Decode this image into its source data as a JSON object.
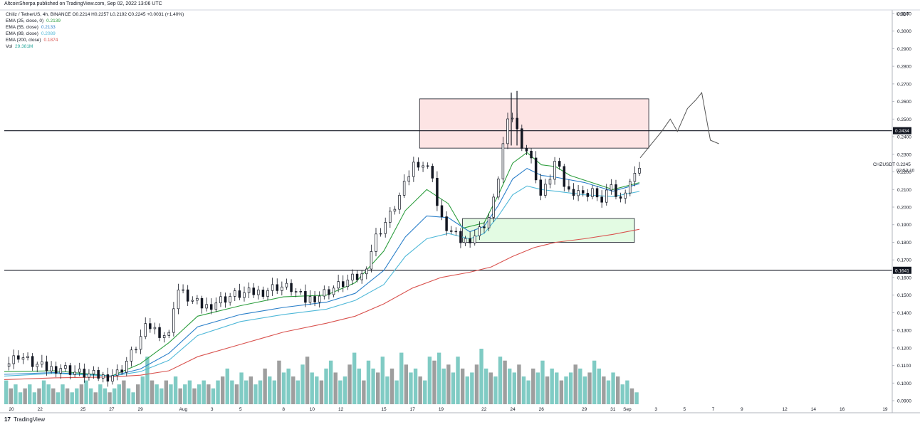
{
  "header": {
    "published": "AltcoinSherpa published on TradingView.com, Sep 02, 2022 13:06 UTC",
    "symbol_line": "Chiliz / TetherUS, 4h, BINANCE  O0.2214  H0.2257  L0.2192  C0.2245  +0.0031 (+1.40%)"
  },
  "legend": [
    {
      "label": "EMA (25, close, 0)",
      "value": "0.2139",
      "color": "#2e9e3f"
    },
    {
      "label": "EMA (55, close)",
      "value": "0.2133",
      "color": "#2a7fc9"
    },
    {
      "label": "EMA (89, close)",
      "value": "0.2089",
      "color": "#4fb8d8"
    },
    {
      "label": "EMA (200, close)",
      "value": "0.1874",
      "color": "#d9534f"
    },
    {
      "label": "Vol",
      "value": "29.381M",
      "color": "#26a69a"
    }
  ],
  "footer": {
    "logo_glyph": "17",
    "brand": "TradingView"
  },
  "chart_data": {
    "type": "candlestick",
    "currency": "USDT",
    "symbol_tag": "CHZUSDT",
    "last_price": "0.2245",
    "countdown": "02:53:10",
    "y_ticks": [
      "0.3100",
      "0.3000",
      "0.2900",
      "0.2800",
      "0.2700",
      "0.2600",
      "0.2500",
      "0.2400",
      "0.2300",
      "0.2200",
      "0.2100",
      "0.2000",
      "0.1900",
      "0.1800",
      "0.1700",
      "0.1600",
      "0.1500",
      "0.1400",
      "0.1300",
      "0.1200",
      "0.1100",
      "0.1000",
      "0.0900"
    ],
    "ylim": [
      0.088,
      0.312
    ],
    "x_ticks": [
      {
        "label": "20",
        "day": 20
      },
      {
        "label": "22",
        "day": 22
      },
      {
        "label": "25",
        "day": 25
      },
      {
        "label": "27",
        "day": 27
      },
      {
        "label": "29",
        "day": 29
      },
      {
        "label": "Aug",
        "day": 32
      },
      {
        "label": "3",
        "day": 34
      },
      {
        "label": "5",
        "day": 36
      },
      {
        "label": "8",
        "day": 39
      },
      {
        "label": "10",
        "day": 41
      },
      {
        "label": "12",
        "day": 43
      },
      {
        "label": "15",
        "day": 46
      },
      {
        "label": "17",
        "day": 48
      },
      {
        "label": "19",
        "day": 50
      },
      {
        "label": "22",
        "day": 53
      },
      {
        "label": "24",
        "day": 55
      },
      {
        "label": "26",
        "day": 57
      },
      {
        "label": "29",
        "day": 60
      },
      {
        "label": "31",
        "day": 62
      },
      {
        "label": "Sep",
        "day": 63
      },
      {
        "label": "3",
        "day": 65
      },
      {
        "label": "5",
        "day": 67
      },
      {
        "label": "7",
        "day": 69
      },
      {
        "label": "9",
        "day": 71
      },
      {
        "label": "12",
        "day": 74
      },
      {
        "label": "14",
        "day": 76
      },
      {
        "label": "16",
        "day": 78
      },
      {
        "label": "19",
        "day": 81
      }
    ],
    "horizontal_levels": [
      {
        "price": 0.2434,
        "label": "0.2434"
      },
      {
        "price": 0.1641,
        "label": "0.1641"
      }
    ],
    "zones": [
      {
        "name": "resistance-zone",
        "from_day": 48.5,
        "to_day": 64.5,
        "low": 0.2335,
        "high": 0.2615,
        "color": "#fde4e4"
      },
      {
        "name": "support-zone",
        "from_day": 51.5,
        "to_day": 63.5,
        "low": 0.18,
        "high": 0.1935,
        "color": "#e3fbe3"
      }
    ],
    "price_path": [
      [
        19.5,
        0.1095
      ],
      [
        20.5,
        0.116
      ],
      [
        21.5,
        0.111
      ],
      [
        22.5,
        0.108
      ],
      [
        23.5,
        0.109
      ],
      [
        24.5,
        0.106
      ],
      [
        25.5,
        0.1045
      ],
      [
        26.5,
        0.1035
      ],
      [
        27.5,
        0.106
      ],
      [
        28.5,
        0.118
      ],
      [
        29.5,
        0.133
      ],
      [
        30.5,
        0.128
      ],
      [
        31.0,
        0.127
      ],
      [
        31.5,
        0.154
      ],
      [
        32.5,
        0.147
      ],
      [
        33.5,
        0.143
      ],
      [
        34.5,
        0.147
      ],
      [
        35.5,
        0.15
      ],
      [
        36.5,
        0.151
      ],
      [
        37.5,
        0.152
      ],
      [
        38.5,
        0.155
      ],
      [
        39.5,
        0.154
      ],
      [
        40.5,
        0.147
      ],
      [
        41.5,
        0.15
      ],
      [
        42.5,
        0.154
      ],
      [
        43.5,
        0.158
      ],
      [
        44.5,
        0.161
      ],
      [
        45.5,
        0.184
      ],
      [
        46.5,
        0.196
      ],
      [
        47.5,
        0.213
      ],
      [
        48.0,
        0.224
      ],
      [
        48.5,
        0.226
      ],
      [
        49.5,
        0.218
      ],
      [
        49.8,
        0.195
      ],
      [
        50.5,
        0.187
      ],
      [
        51.5,
        0.18
      ],
      [
        52.5,
        0.185
      ],
      [
        53.5,
        0.196
      ],
      [
        54.0,
        0.218
      ],
      [
        54.5,
        0.245
      ],
      [
        55.0,
        0.252
      ],
      [
        55.5,
        0.238
      ],
      [
        56.0,
        0.232
      ],
      [
        56.5,
        0.222
      ],
      [
        57.0,
        0.205
      ],
      [
        57.5,
        0.215
      ],
      [
        58.0,
        0.227
      ],
      [
        58.5,
        0.214
      ],
      [
        59.0,
        0.208
      ],
      [
        59.5,
        0.211
      ],
      [
        60.0,
        0.205
      ],
      [
        60.5,
        0.212
      ],
      [
        61.0,
        0.201
      ],
      [
        61.5,
        0.209
      ],
      [
        62.0,
        0.21
      ],
      [
        62.5,
        0.203
      ],
      [
        63.0,
        0.214
      ],
      [
        63.5,
        0.217
      ],
      [
        63.85,
        0.2245
      ]
    ],
    "ema_series": [
      {
        "name": "EMA (25, close, 0)",
        "color": "#2e9e3f",
        "points": [
          [
            19.5,
            0.1065
          ],
          [
            23,
            0.107
          ],
          [
            27,
            0.104
          ],
          [
            29,
            0.111
          ],
          [
            31,
            0.123
          ],
          [
            33,
            0.138
          ],
          [
            36,
            0.144
          ],
          [
            39,
            0.149
          ],
          [
            42,
            0.15
          ],
          [
            44,
            0.157
          ],
          [
            46,
            0.175
          ],
          [
            47.5,
            0.198
          ],
          [
            49,
            0.21
          ],
          [
            50.5,
            0.202
          ],
          [
            51.5,
            0.188
          ],
          [
            53,
            0.191
          ],
          [
            54,
            0.207
          ],
          [
            55,
            0.225
          ],
          [
            56,
            0.231
          ],
          [
            57,
            0.224
          ],
          [
            58,
            0.223
          ],
          [
            59,
            0.218
          ],
          [
            60.5,
            0.214
          ],
          [
            62,
            0.21
          ],
          [
            63.85,
            0.2139
          ]
        ]
      },
      {
        "name": "EMA (55, close)",
        "color": "#2a7fc9",
        "points": [
          [
            19.5,
            0.105
          ],
          [
            23,
            0.106
          ],
          [
            27,
            0.104
          ],
          [
            29,
            0.108
          ],
          [
            31,
            0.117
          ],
          [
            33,
            0.132
          ],
          [
            36,
            0.139
          ],
          [
            39,
            0.143
          ],
          [
            42,
            0.146
          ],
          [
            44,
            0.151
          ],
          [
            46,
            0.164
          ],
          [
            47.5,
            0.183
          ],
          [
            49,
            0.195
          ],
          [
            50.5,
            0.194
          ],
          [
            52,
            0.186
          ],
          [
            53,
            0.189
          ],
          [
            54,
            0.201
          ],
          [
            55,
            0.216
          ],
          [
            56,
            0.222
          ],
          [
            57,
            0.218
          ],
          [
            58,
            0.217
          ],
          [
            60,
            0.214
          ],
          [
            62,
            0.209
          ],
          [
            63.85,
            0.2133
          ]
        ]
      },
      {
        "name": "EMA (89, close)",
        "color": "#4fb8d8",
        "points": [
          [
            19.5,
            0.104
          ],
          [
            23,
            0.1055
          ],
          [
            27,
            0.104
          ],
          [
            29,
            0.1065
          ],
          [
            31,
            0.113
          ],
          [
            33,
            0.127
          ],
          [
            36,
            0.135
          ],
          [
            39,
            0.139
          ],
          [
            42,
            0.142
          ],
          [
            44,
            0.147
          ],
          [
            46,
            0.156
          ],
          [
            47.5,
            0.172
          ],
          [
            49,
            0.182
          ],
          [
            50.5,
            0.185
          ],
          [
            52,
            0.182
          ],
          [
            53,
            0.185
          ],
          [
            54,
            0.195
          ],
          [
            55,
            0.207
          ],
          [
            56,
            0.212
          ],
          [
            57,
            0.21
          ],
          [
            58,
            0.209
          ],
          [
            60,
            0.207
          ],
          [
            62,
            0.206
          ],
          [
            63.85,
            0.2089
          ]
        ]
      },
      {
        "name": "EMA (200, close)",
        "color": "#d9534f",
        "points": [
          [
            19.5,
            0.102
          ],
          [
            23,
            0.103
          ],
          [
            27,
            0.1035
          ],
          [
            29,
            0.1045
          ],
          [
            31,
            0.107
          ],
          [
            33,
            0.115
          ],
          [
            36,
            0.122
          ],
          [
            39,
            0.129
          ],
          [
            42,
            0.134
          ],
          [
            44,
            0.138
          ],
          [
            46,
            0.145
          ],
          [
            48,
            0.154
          ],
          [
            50,
            0.16
          ],
          [
            52,
            0.163
          ],
          [
            53.5,
            0.166
          ],
          [
            55,
            0.172
          ],
          [
            56.5,
            0.177
          ],
          [
            58,
            0.18
          ],
          [
            60,
            0.182
          ],
          [
            62,
            0.1845
          ],
          [
            63.85,
            0.1874
          ]
        ]
      }
    ],
    "projection": [
      [
        63.9,
        0.228
      ],
      [
        64.6,
        0.235
      ],
      [
        65.4,
        0.243
      ],
      [
        66.0,
        0.25
      ],
      [
        66.5,
        0.243
      ],
      [
        67.2,
        0.256
      ],
      [
        67.8,
        0.261
      ],
      [
        68.2,
        0.265
      ],
      [
        68.8,
        0.238
      ],
      [
        69.4,
        0.236
      ]
    ],
    "volume": [
      6,
      4,
      5,
      3,
      4,
      5,
      3,
      4,
      6,
      5,
      4,
      3,
      5,
      4,
      3,
      4,
      5,
      6,
      4,
      3,
      5,
      4,
      3,
      4,
      5,
      6,
      4,
      3,
      5,
      7,
      12,
      6,
      5,
      4,
      6,
      5,
      7,
      4,
      5,
      6,
      4,
      5,
      6,
      5,
      4,
      6,
      7,
      9,
      6,
      5,
      8,
      6,
      7,
      5,
      6,
      9,
      7,
      6,
      11,
      8,
      9,
      7,
      6,
      10,
      12,
      8,
      7,
      6,
      9,
      11,
      8,
      6,
      7,
      10,
      13,
      9,
      6,
      11,
      9,
      8,
      12,
      7,
      9,
      6,
      13,
      10,
      8,
      9,
      7,
      6,
      12,
      11,
      13,
      9,
      10,
      8,
      12,
      9,
      7,
      8,
      10,
      14,
      9,
      8,
      7,
      12,
      11,
      9,
      8,
      10,
      7,
      6,
      9,
      8,
      11,
      7,
      9,
      8,
      6,
      7,
      8,
      10,
      9,
      7,
      8,
      11,
      9,
      7,
      6,
      8,
      7,
      5,
      6,
      4,
      3
    ]
  }
}
